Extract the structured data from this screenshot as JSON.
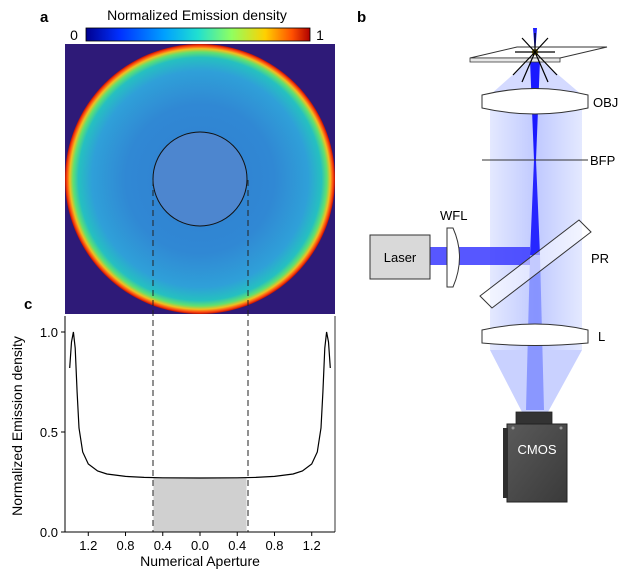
{
  "panel_labels": {
    "a": "a",
    "b": "b",
    "c": "c"
  },
  "colorbar": {
    "title": "Normalized Emission density",
    "min_label": "0",
    "max_label": "1"
  },
  "optics": {
    "obj": "OBJ",
    "bfp": "BFP",
    "wfl": "WFL",
    "laser": "Laser",
    "pr": "PR",
    "l": "L",
    "cmos": "CMOS"
  },
  "colors": {
    "beam": "#1a1aff",
    "beam_light": "#b9c4ff",
    "camera": "#4d4d4d",
    "laser_box": "#d9d9d9",
    "shade": "#d0d0d0"
  },
  "chart_data": {
    "type": "line",
    "xlabel": "Numerical Aperture",
    "ylabel": "Normalized Emission density",
    "xtick_labels": [
      "1.2",
      "0.8",
      "0.4",
      "0.0",
      "0.4",
      "0.8",
      "1.2"
    ],
    "xtick_values": [
      -1.2,
      -0.8,
      -0.4,
      0.0,
      0.4,
      0.8,
      1.2
    ],
    "ytick_labels": [
      "0.0",
      "0.5",
      "1.0"
    ],
    "ytick_values": [
      0.0,
      0.5,
      1.0
    ],
    "xlim": [
      -1.45,
      1.45
    ],
    "ylim": [
      0.0,
      1.08
    ],
    "shaded_region": [
      -0.5,
      0.5
    ],
    "shaded_level": 0.27,
    "series": [
      {
        "x": [
          -1.4,
          -1.38,
          -1.36,
          -1.34,
          -1.32,
          -1.3,
          -1.26,
          -1.2,
          -1.1,
          -1.0,
          -0.8,
          -0.6,
          -0.4,
          0.0,
          0.4,
          0.6,
          0.8,
          1.0,
          1.1,
          1.2,
          1.26,
          1.3,
          1.32,
          1.34,
          1.36,
          1.38,
          1.4
        ],
        "y": [
          0.82,
          0.95,
          1.0,
          0.92,
          0.7,
          0.52,
          0.4,
          0.34,
          0.305,
          0.29,
          0.278,
          0.273,
          0.271,
          0.27,
          0.271,
          0.273,
          0.278,
          0.29,
          0.305,
          0.34,
          0.4,
          0.52,
          0.7,
          0.92,
          1.0,
          0.95,
          0.82
        ]
      }
    ]
  }
}
